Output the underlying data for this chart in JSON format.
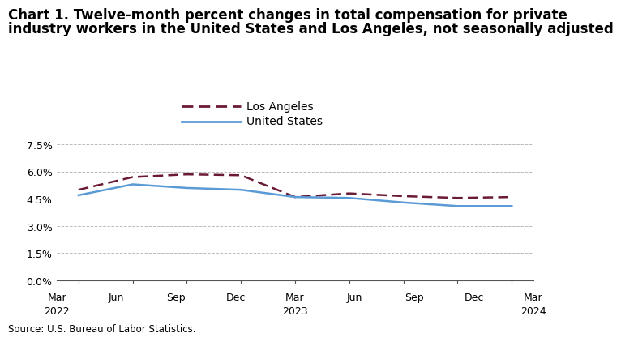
{
  "title_line1": "Chart 1. Twelve-month percent changes in total compensation for private",
  "title_line2": "industry workers in the United States and Los Angeles, not seasonally adjusted",
  "source": "Source: U.S. Bureau of Labor Statistics.",
  "x_tick_labels_top": [
    "Mar",
    "Jun",
    "Sep",
    "Dec",
    "Mar",
    "Jun",
    "Sep",
    "Dec",
    "Mar"
  ],
  "x_tick_labels_bot": [
    "2022",
    "",
    "",
    "",
    "2023",
    "",
    "",
    "",
    "2024"
  ],
  "los_angeles": [
    5.0,
    5.7,
    5.85,
    5.8,
    4.6,
    4.8,
    4.65,
    4.55,
    4.6
  ],
  "united_states": [
    4.7,
    5.3,
    5.1,
    5.0,
    4.6,
    4.55,
    4.3,
    4.1,
    4.1
  ],
  "la_color": "#6B1A35",
  "us_color": "#5B9BD5",
  "la_label": "Los Angeles",
  "us_label": "United States",
  "ylim": [
    0.0,
    8.5
  ],
  "ytick_vals": [
    0.0,
    1.5,
    3.0,
    4.5,
    6.0,
    7.5
  ],
  "ytick_labels": [
    "0.0%",
    "1.5%",
    "3.0%",
    "4.5%",
    "6.0%",
    "7.5%"
  ],
  "grid_color": "#bbbbbb",
  "background_color": "#ffffff",
  "title_fontsize": 12,
  "legend_fontsize": 10,
  "tick_fontsize": 9,
  "source_fontsize": 8.5
}
